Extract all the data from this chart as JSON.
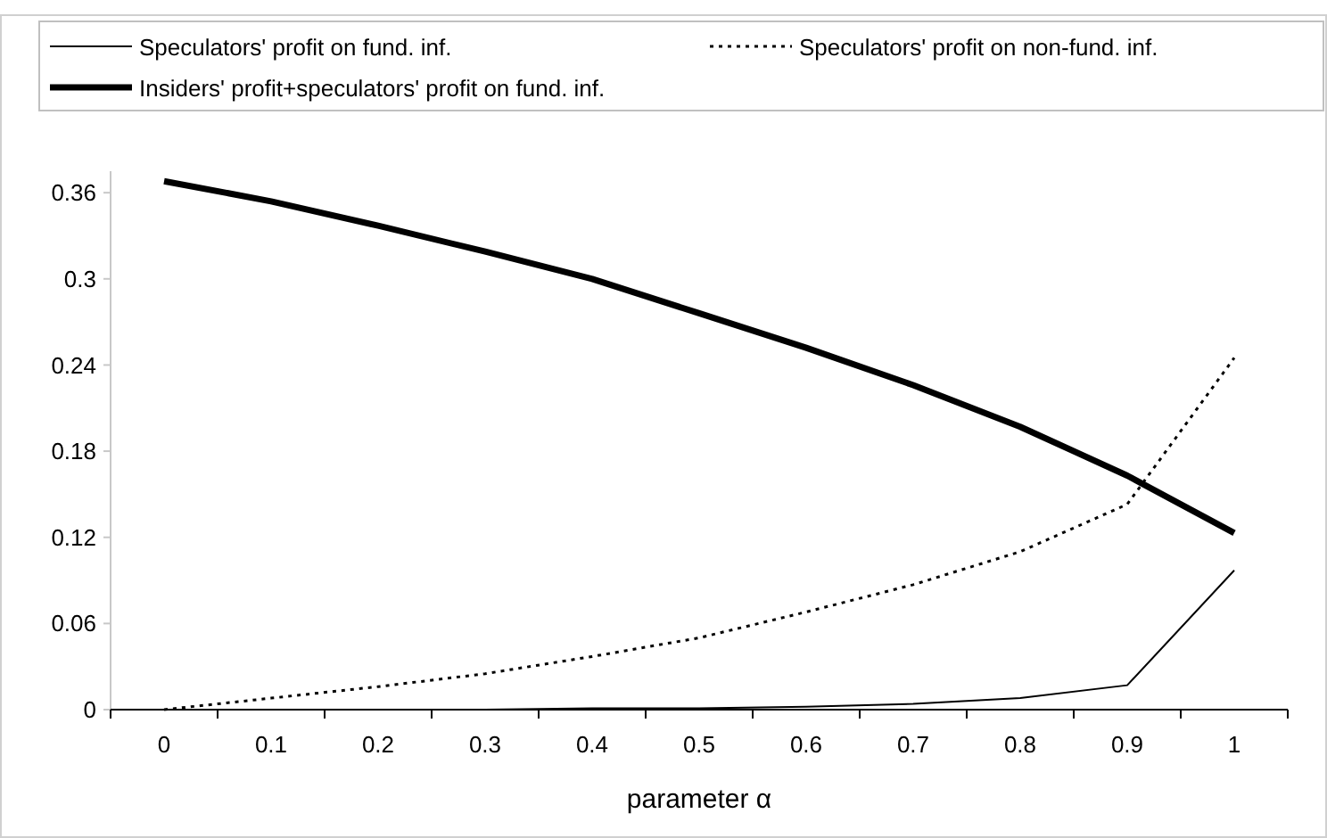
{
  "chart_data": {
    "type": "line",
    "xlabel": "parameter α",
    "categories": [
      "0",
      "0.1",
      "0.2",
      "0.3",
      "0.4",
      "0.5",
      "0.6",
      "0.7",
      "0.8",
      "0.9",
      "1"
    ],
    "series": [
      {
        "name": "Speculators' profit on fund. inf.",
        "color": "#000000",
        "line_style": "solid",
        "values": [
          0,
          0,
          0,
          0,
          0.001,
          0.001,
          0.002,
          0.004,
          0.008,
          0.017,
          0.097
        ]
      },
      {
        "name": "Speculators' profit on non-fund. inf.",
        "color": "#000000",
        "line_style": "dotted",
        "values": [
          0,
          0.008,
          0.016,
          0.025,
          0.037,
          0.05,
          0.068,
          0.087,
          0.11,
          0.143,
          0.245
        ]
      },
      {
        "name": "Insiders' profit+speculators' profit on fund. inf.",
        "color": "#000000",
        "line_style": "solid",
        "values": [
          0.368,
          0.354,
          0.337,
          0.319,
          0.3,
          0.276,
          0.252,
          0.226,
          0.197,
          0.163,
          0.123
        ]
      }
    ],
    "ylim": [
      0,
      0.375
    ],
    "yticks": [
      0,
      0.06,
      0.12,
      0.18,
      0.24,
      0.3,
      0.36
    ],
    "grid": false,
    "legend": "top",
    "marker": "none"
  }
}
